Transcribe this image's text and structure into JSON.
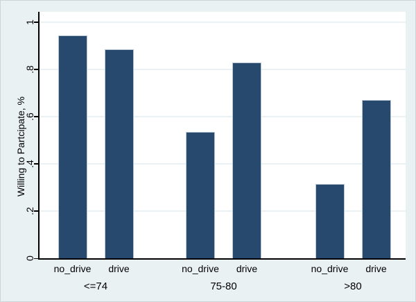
{
  "figure": {
    "background": "#eaf1f3",
    "plot_background": "#ffffff"
  },
  "chart_data": {
    "type": "bar",
    "title": "",
    "xlabel": "",
    "ylabel": "Willing to Partcipate, %",
    "ylim": [
      0,
      1.044
    ],
    "grid": true,
    "legend": "none",
    "yticks": [
      {
        "value": 0,
        "label": "0"
      },
      {
        "value": 0.2,
        "label": ".2"
      },
      {
        "value": 0.4,
        "label": ".4"
      },
      {
        "value": 0.6,
        "label": ".6"
      },
      {
        "value": 0.8,
        "label": ".8"
      },
      {
        "value": 1,
        "label": "1"
      }
    ],
    "categories": [
      "<=74",
      "75-80",
      ">80"
    ],
    "bar_series_labels": [
      "no_drive",
      "drive"
    ],
    "groups": [
      {
        "label": "<=74",
        "bars": [
          {
            "label": "no_drive",
            "value": 0.945
          },
          {
            "label": "drive",
            "value": 0.885
          }
        ]
      },
      {
        "label": "75-80",
        "bars": [
          {
            "label": "no_drive",
            "value": 0.535
          },
          {
            "label": "drive",
            "value": 0.83
          }
        ]
      },
      {
        "label": ">80",
        "bars": [
          {
            "label": "no_drive",
            "value": 0.315
          },
          {
            "label": "drive",
            "value": 0.67
          }
        ]
      }
    ],
    "colors": {
      "bar_fill": "#27496d",
      "bar_border": "#b9c6d4",
      "gridline": "#e9f1f4",
      "axis": "#000000",
      "text": "#000000"
    }
  }
}
